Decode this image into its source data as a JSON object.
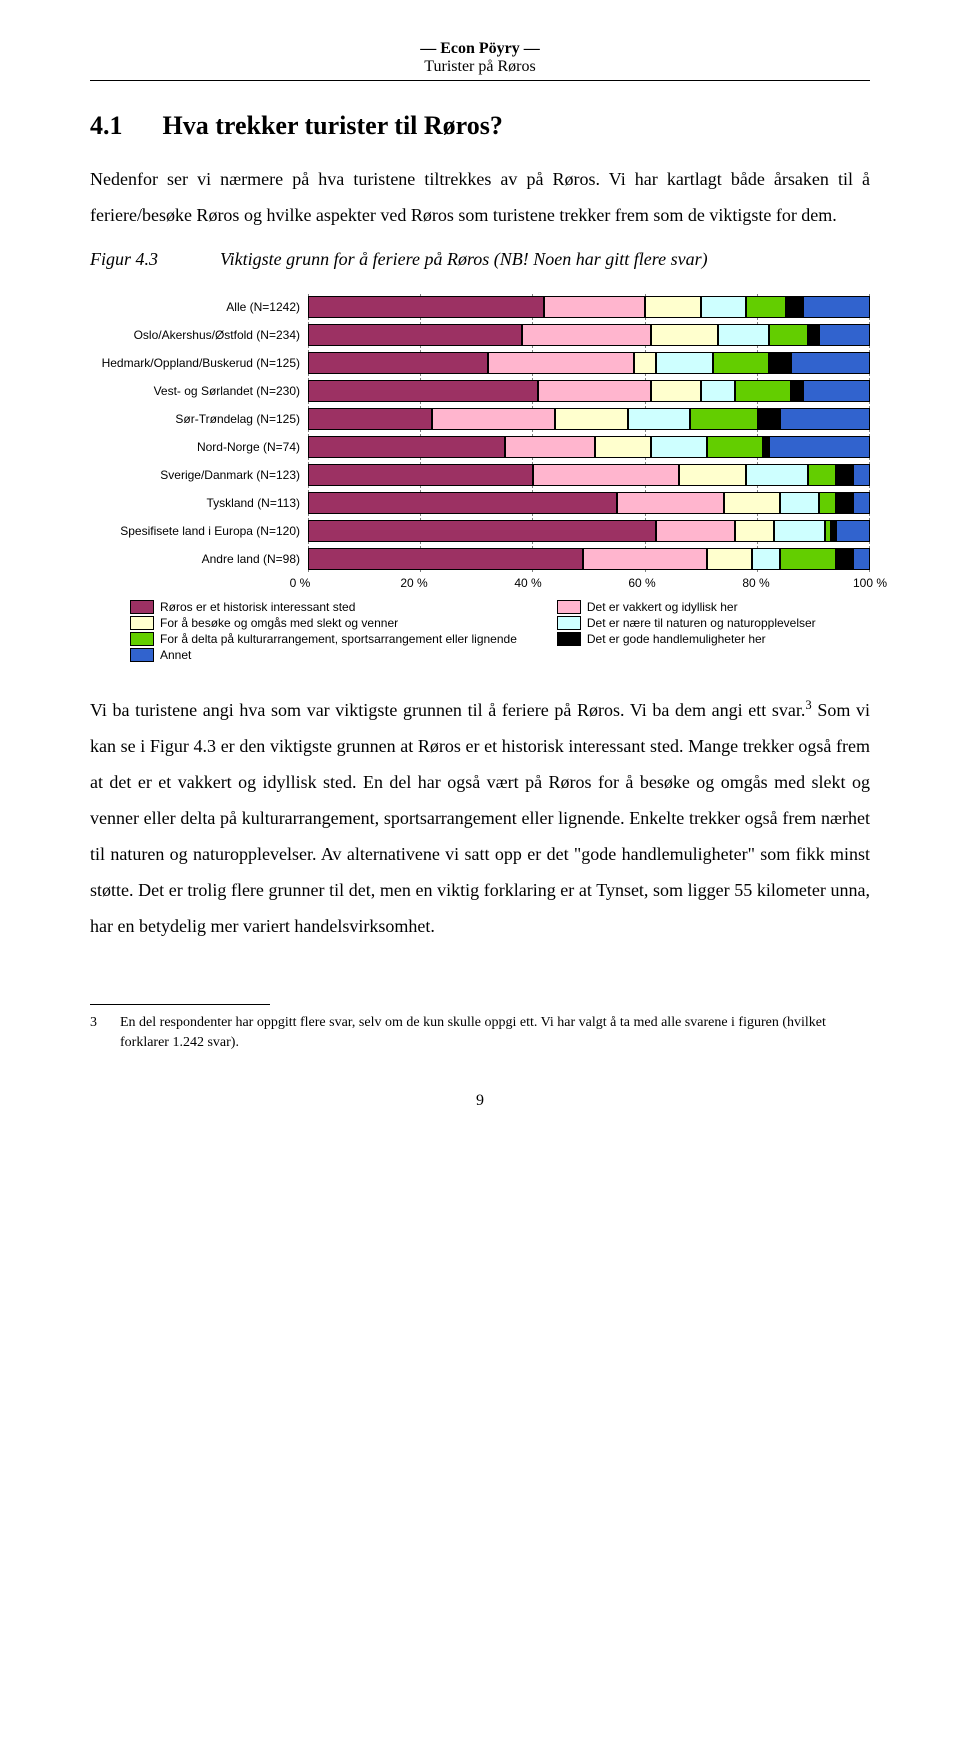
{
  "running_header_line1": "— Econ Pöyry —",
  "running_header_line2": "Turister på Røros",
  "section_number": "4.1",
  "section_title": "Hva trekker turister til Røros?",
  "intro_paragraph": "Nedenfor ser vi nærmere på hva turistene tiltrekkes av på Røros. Vi har kartlagt både årsaken til å feriere/besøke Røros og hvilke aspekter ved Røros som turistene trekker frem som de viktigste for dem.",
  "figure_caption_number": "Figur 4.3",
  "figure_caption_text": "Viktigste grunn for å feriere på Røros (NB! Noen har gitt flere svar)",
  "chart": {
    "type": "stacked-bar-horizontal",
    "xlim": [
      0,
      100
    ],
    "xtick_step": 20,
    "xtick_labels": [
      "0 %",
      "20 %",
      "40 %",
      "60 %",
      "80 %",
      "100 %"
    ],
    "grid_color": "#7f7f7f",
    "background_color": "#ffffff",
    "label_fontsize": 12,
    "bar_border_color": "#000000",
    "series": [
      {
        "name": "Røros er et historisk interessant sted",
        "color": "#9c3163"
      },
      {
        "name": "Det er vakkert og idyllisk her",
        "color": "#ffb5ce"
      },
      {
        "name": "For å besøke og omgås med slekt og venner",
        "color": "#ffffce"
      },
      {
        "name": "Det er nære til naturen og naturopplevelser",
        "color": "#ceffff"
      },
      {
        "name": "For å delta på kulturarrangement, sportsarrangement eller lignende",
        "color": "#63ce00"
      },
      {
        "name": "Det er gode handlemuligheter her",
        "color": "#000000"
      },
      {
        "name": "Annet",
        "color": "#3163ce"
      }
    ],
    "rows": [
      {
        "label": "Alle (N=1242)",
        "values": [
          42,
          18,
          10,
          8,
          7,
          3,
          12
        ]
      },
      {
        "label": "Oslo/Akershus/Østfold (N=234)",
        "values": [
          38,
          23,
          12,
          9,
          7,
          2,
          9
        ]
      },
      {
        "label": "Hedmark/Oppland/Buskerud (N=125)",
        "values": [
          32,
          26,
          4,
          10,
          10,
          4,
          14
        ]
      },
      {
        "label": "Vest- og Sørlandet (N=230)",
        "values": [
          41,
          20,
          9,
          6,
          10,
          2,
          12
        ]
      },
      {
        "label": "Sør-Trøndelag (N=125)",
        "values": [
          22,
          22,
          13,
          11,
          12,
          4,
          16
        ]
      },
      {
        "label": "Nord-Norge (N=74)",
        "values": [
          35,
          16,
          10,
          10,
          10,
          1,
          18
        ]
      },
      {
        "label": "Sverige/Danmark (N=123)",
        "values": [
          40,
          26,
          12,
          11,
          5,
          3,
          3
        ]
      },
      {
        "label": "Tyskland (N=113)",
        "values": [
          55,
          19,
          10,
          7,
          3,
          3,
          3
        ]
      },
      {
        "label": "Spesifisete land i Europa (N=120)",
        "values": [
          62,
          14,
          7,
          9,
          1,
          1,
          6
        ]
      },
      {
        "label": "Andre land (N=98)",
        "values": [
          49,
          22,
          8,
          5,
          10,
          3,
          3
        ]
      }
    ]
  },
  "analysis_paragraph_html": "Vi ba turistene angi hva som var viktigste grunnen til å feriere på Røros. Vi ba dem angi ett svar.<sup>3</sup> Som vi kan se i Figur 4.3 er den viktigste grunnen at Røros er et historisk interessant sted. Mange trekker også frem at det er et vakkert og idyllisk sted. En del har også vært på Røros for å besøke og omgås med slekt og venner eller delta på kultur­arrangement, sportsarrangement eller lignende. Enkelte trekker også frem nærhet til naturen og naturopplevelser. Av alternativene vi satt opp er det \"gode handle­muligheter\" som fikk minst støtte. Det er trolig flere grunner til det, men en viktig forklaring er at Tynset, som ligger 55 kilometer unna, har en betydelig mer variert handelsvirksomhet.",
  "footnote_marker": "3",
  "footnote_text": "En del respondenter har oppgitt flere svar, selv om de kun skulle oppgi ett. Vi har valgt å ta med alle svarene i figuren (hvilket forklarer 1.242 svar).",
  "page_number": "9"
}
